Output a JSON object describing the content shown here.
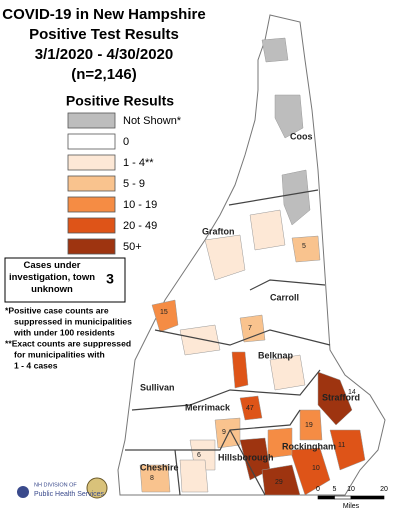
{
  "title_lines": [
    "COVID-19 in New Hampshire",
    "Positive Test Results",
    "3/1/2020 - 4/30/2020",
    "(n=2,146)"
  ],
  "legend": {
    "title": "Positive Results",
    "items": [
      {
        "label": "Not Shown*",
        "color": "#bdbdbd"
      },
      {
        "label": "0",
        "color": "#ffffff"
      },
      {
        "label": "1 - 4**",
        "color": "#fde8d6"
      },
      {
        "label": "5 - 9",
        "color": "#f9c38e"
      },
      {
        "label": "10 - 19",
        "color": "#f58c44"
      },
      {
        "label": "20 - 49",
        "color": "#de5418"
      },
      {
        "label": "50+",
        "color": "#9e3410"
      }
    ]
  },
  "unknown_box": {
    "label": "Cases under investigation, town unknown",
    "value": "3"
  },
  "notes": [
    "*Positive case counts are",
    "suppressed in municipalities",
    "with under 100 residents",
    "**Exact counts are suppressed",
    "for municipalities with",
    "1 - 4 cases"
  ],
  "counties": [
    "Coos",
    "Grafton",
    "Carroll",
    "Belknap",
    "Sullivan",
    "Merrimack",
    "Strafford",
    "Hillsborough",
    "Rockingham",
    "Cheshire"
  ],
  "town_labels": [
    "15",
    "5",
    "7",
    "47",
    "14",
    "19",
    "11",
    "29",
    "9",
    "6",
    "10",
    "8"
  ],
  "scale": {
    "ticks": [
      0,
      5,
      10,
      20
    ],
    "unit": "Miles"
  },
  "logo": {
    "line1": "NH DIVISION OF",
    "line2": "Public Health Services"
  }
}
